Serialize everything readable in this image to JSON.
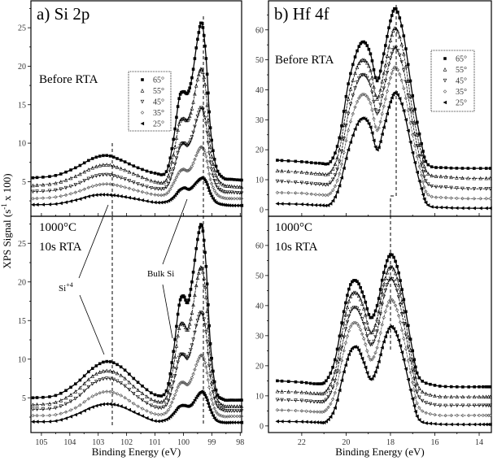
{
  "figure": {
    "ylabel_main": "XPS Signal (s",
    "ylabel_sup": "-1",
    "ylabel_tail": " x 100)",
    "annotations": {
      "si4_base": "Si",
      "si4_sup": "+4",
      "bulk_si": "Bulk Si"
    }
  },
  "chart_data": [
    {
      "type": "line",
      "title": "a) Si 2p",
      "condition": [
        "Before RTA"
      ],
      "xlabel": "",
      "xlim": [
        105.37,
        97.95
      ],
      "ylim": [
        0.5,
        28.5
      ],
      "xticks": [
        105,
        104,
        103,
        102,
        101,
        100,
        99,
        98
      ],
      "yticks": [
        5,
        10,
        15,
        20,
        25
      ],
      "grid": false,
      "legend": "top-center",
      "x": [
        105.3,
        104.5,
        103.8,
        103.2,
        102.7,
        102.2,
        101.6,
        101.0,
        100.6,
        100.35,
        100.15,
        100.0,
        99.85,
        99.7,
        99.5,
        99.35,
        99.2,
        99.05,
        98.85,
        98.6,
        98.3,
        97.95
      ],
      "series": [
        {
          "name": "65°",
          "values": [
            5.5,
            5.8,
            6.8,
            8.0,
            8.4,
            7.8,
            6.8,
            6.1,
            6.3,
            10.5,
            15.8,
            16.7,
            16.5,
            18.5,
            23.5,
            25.6,
            21,
            12,
            7,
            5.5,
            5.3,
            5.2
          ]
        },
        {
          "name": "55°",
          "values": [
            4.5,
            4.8,
            5.7,
            6.8,
            7.2,
            6.7,
            5.8,
            5.0,
            5.2,
            8.5,
            12.5,
            13.2,
            13.0,
            14.5,
            18.3,
            19.6,
            16.5,
            9.5,
            5.8,
            4.6,
            4.4,
            4.3
          ]
        },
        {
          "name": "45°",
          "values": [
            3.7,
            3.9,
            4.6,
            5.6,
            5.9,
            5.5,
            4.7,
            4.1,
            4.3,
            6.6,
            9.3,
            10.0,
            9.7,
            10.8,
            13.5,
            14.6,
            12.5,
            7.5,
            4.6,
            3.7,
            3.6,
            3.5
          ]
        },
        {
          "name": "35°",
          "values": [
            2.8,
            3.0,
            3.6,
            4.4,
            4.7,
            4.4,
            3.8,
            3.3,
            3.4,
            4.8,
            6.2,
            6.6,
            6.4,
            7.0,
            8.8,
            9.5,
            8.3,
            5.3,
            3.5,
            2.9,
            2.8,
            2.8
          ]
        },
        {
          "name": "25°",
          "values": [
            2.0,
            2.1,
            2.6,
            3.2,
            3.3,
            3.1,
            2.7,
            2.3,
            2.4,
            3.0,
            3.9,
            4.2,
            4.0,
            4.3,
            5.1,
            5.5,
            4.9,
            3.4,
            2.3,
            2.0,
            1.9,
            1.9
          ]
        }
      ]
    },
    {
      "type": "line",
      "title": "",
      "condition": [
        "1000°C",
        "10s RTA"
      ],
      "xlabel": "Binding Energy (eV)",
      "xlim": [
        105.37,
        97.95
      ],
      "ylim": [
        0.5,
        28.5
      ],
      "xticks": [
        105,
        104,
        103,
        102,
        101,
        100,
        99,
        98
      ],
      "yticks": [
        5,
        10,
        15,
        20,
        25
      ],
      "grid": false,
      "x": [
        105.3,
        104.5,
        103.8,
        103.2,
        102.7,
        102.2,
        101.6,
        101.0,
        100.6,
        100.35,
        100.15,
        100.0,
        99.85,
        99.7,
        99.5,
        99.35,
        99.2,
        99.05,
        98.85,
        98.6,
        98.3,
        97.95
      ],
      "series": [
        {
          "name": "65°",
          "values": [
            5.0,
            5.3,
            6.8,
            8.8,
            9.7,
            9.0,
            7.0,
            5.4,
            5.9,
            11,
            17,
            18.2,
            17.3,
            20,
            25.5,
            27.3,
            22,
            12,
            6,
            4.8,
            4.7,
            4.7
          ]
        },
        {
          "name": "55°",
          "values": [
            4.1,
            4.4,
            5.8,
            7.8,
            8.5,
            7.9,
            6.0,
            4.6,
            5.0,
            9.0,
            14.0,
            14.6,
            13.8,
            16,
            20.5,
            21.8,
            18,
            10,
            5.2,
            4.0,
            3.9,
            3.9
          ]
        },
        {
          "name": "45°",
          "values": [
            3.5,
            3.7,
            4.9,
            6.8,
            7.5,
            6.9,
            5.1,
            3.8,
            4.1,
            7.0,
            10.2,
            10.6,
            10.1,
            11.8,
            15,
            16,
            13.5,
            7.8,
            4.3,
            3.4,
            3.3,
            3.3
          ]
        },
        {
          "name": "35°",
          "values": [
            2.7,
            2.8,
            3.7,
            5.2,
            5.8,
            5.3,
            3.9,
            2.9,
            3.1,
            4.9,
            6.7,
            7.0,
            6.7,
            7.6,
            9.7,
            10.5,
            9,
            5.5,
            3.2,
            2.6,
            2.6,
            2.6
          ]
        },
        {
          "name": "25°",
          "values": [
            1.9,
            2.0,
            2.8,
            3.8,
            4.2,
            3.9,
            2.9,
            2.0,
            2.2,
            3.0,
            3.9,
            4.0,
            3.9,
            4.2,
            5.3,
            5.8,
            5.0,
            3.4,
            2.1,
            1.8,
            1.8,
            1.8
          ]
        }
      ]
    },
    {
      "type": "line",
      "title": "b) Hf 4f",
      "condition": [
        "Before RTA"
      ],
      "xlabel": "",
      "xlim": [
        23.5,
        13.45
      ],
      "ylim": [
        -2.2,
        69.7
      ],
      "xticks": [
        22,
        20,
        18,
        16,
        14
      ],
      "yticks": [
        0,
        10,
        20,
        30,
        40,
        50,
        60
      ],
      "grid": false,
      "legend": "top-right",
      "x": [
        23.1,
        22.0,
        21.2,
        20.7,
        20.3,
        19.9,
        19.5,
        19.2,
        18.9,
        18.6,
        18.3,
        18.0,
        17.75,
        17.4,
        17.0,
        16.6,
        16.3,
        15.5,
        14.5,
        13.5
      ],
      "series": [
        {
          "name": "65°",
          "values": [
            16.5,
            16,
            15.5,
            16,
            24,
            42,
            53,
            56,
            52,
            43,
            52,
            63,
            67,
            58,
            38,
            22,
            15,
            14,
            13.8,
            13.8
          ]
        },
        {
          "name": "55°",
          "values": [
            13,
            12.5,
            12,
            12.5,
            20,
            37,
            47.5,
            50,
            46.5,
            37,
            45.5,
            56.5,
            60.5,
            52,
            33,
            18.5,
            12,
            11,
            10.5,
            10.5
          ]
        },
        {
          "name": "45°",
          "values": [
            9.5,
            9,
            8.5,
            9,
            16,
            32,
            42.5,
            45,
            41.5,
            32,
            40.5,
            50.5,
            54,
            46.5,
            29,
            15,
            8.5,
            7.5,
            7,
            7
          ]
        },
        {
          "name": "35°",
          "values": [
            5.7,
            5.5,
            5,
            5.5,
            12,
            26.5,
            36,
            38.5,
            35.5,
            26.5,
            34.5,
            44,
            47.5,
            40.5,
            25,
            11.5,
            5,
            4,
            3.7,
            3.7
          ]
        },
        {
          "name": "25°",
          "values": [
            2,
            1.8,
            1.5,
            2,
            8,
            20,
            28.5,
            30.5,
            27.5,
            20,
            27.5,
            36,
            39,
            33,
            19,
            7,
            1.5,
            0.7,
            0.5,
            0.5
          ]
        }
      ]
    },
    {
      "type": "line",
      "title": "",
      "condition": [
        "1000°C",
        "10s RTA"
      ],
      "xlabel": "Binding Energy (eV)",
      "xlim": [
        23.5,
        13.45
      ],
      "ylim": [
        -2.2,
        69.7
      ],
      "xticks": [
        22,
        20,
        18,
        16,
        14
      ],
      "yticks": [
        0,
        10,
        20,
        30,
        40,
        50,
        60
      ],
      "grid": false,
      "x": [
        23.1,
        22.0,
        21.3,
        20.9,
        20.5,
        20.1,
        19.8,
        19.5,
        19.2,
        18.9,
        18.6,
        18.3,
        18.0,
        17.7,
        17.4,
        17.0,
        16.7,
        16.0,
        15.0,
        14.0,
        13.5
      ],
      "series": [
        {
          "name": "65°",
          "values": [
            15,
            14.5,
            14,
            15,
            22,
            38,
            47,
            48,
            43,
            36,
            40,
            51,
            57,
            53,
            42,
            25,
            16,
            13.5,
            13,
            13,
            13
          ]
        },
        {
          "name": "55°",
          "values": [
            11.5,
            11.2,
            10.8,
            11.5,
            18,
            34,
            43,
            44,
            39,
            31,
            35.5,
            47,
            53,
            49,
            38,
            21.5,
            12.5,
            10,
            9.7,
            9.7,
            9.7
          ]
        },
        {
          "name": "45°",
          "values": [
            8.7,
            8.4,
            8,
            8.7,
            15,
            29.5,
            38,
            39,
            34,
            27,
            31.5,
            43,
            49,
            45,
            34,
            18.5,
            9.5,
            7,
            6.8,
            6.8,
            6.8
          ]
        },
        {
          "name": "35°",
          "values": [
            5.3,
            5,
            4.7,
            5.3,
            11,
            25,
            33,
            34,
            29,
            22,
            26,
            36,
            42,
            38.5,
            29,
            14.5,
            6,
            3.7,
            3.5,
            3.5,
            3.5
          ]
        },
        {
          "name": "25°",
          "values": [
            1.5,
            1.4,
            1.2,
            1.5,
            6,
            18,
            25,
            26,
            21,
            15.5,
            19.5,
            28,
            33,
            30,
            22,
            9,
            2,
            0.7,
            0.5,
            0.5,
            0.5
          ]
        }
      ]
    }
  ]
}
